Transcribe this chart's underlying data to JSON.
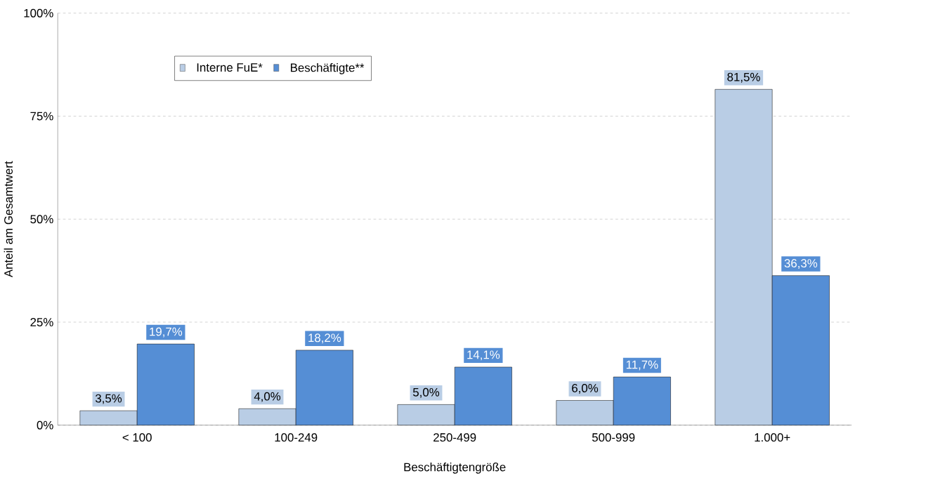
{
  "chart_data": {
    "type": "bar",
    "xlabel": "Beschäftigtengröße",
    "ylabel": "Anteil am Gesamtwert",
    "categories": [
      "< 100",
      "100-249",
      "250-499",
      "500-999",
      "1.000+"
    ],
    "series": [
      {
        "name": "Interne FuE*",
        "color": "#b9cde5",
        "values": [
          3.5,
          4.0,
          5.0,
          6.0,
          81.5
        ],
        "value_labels": [
          "3,5%",
          "4,0%",
          "5,0%",
          "6,0%",
          "81,5%"
        ]
      },
      {
        "name": "Beschäftigte**",
        "color": "#558ed5",
        "values": [
          19.7,
          18.2,
          14.1,
          11.7,
          36.3
        ],
        "value_labels": [
          "19,7%",
          "18,2%",
          "14,1%",
          "11,7%",
          "36,3%"
        ]
      }
    ],
    "ylim": [
      0,
      100
    ],
    "yticks": [
      {
        "value": 0,
        "label": "0%"
      },
      {
        "value": 25,
        "label": "25%"
      },
      {
        "value": 50,
        "label": "50%"
      },
      {
        "value": 75,
        "label": "75%"
      },
      {
        "value": 100,
        "label": "100%"
      }
    ],
    "grid": "y",
    "legend": "top left"
  }
}
